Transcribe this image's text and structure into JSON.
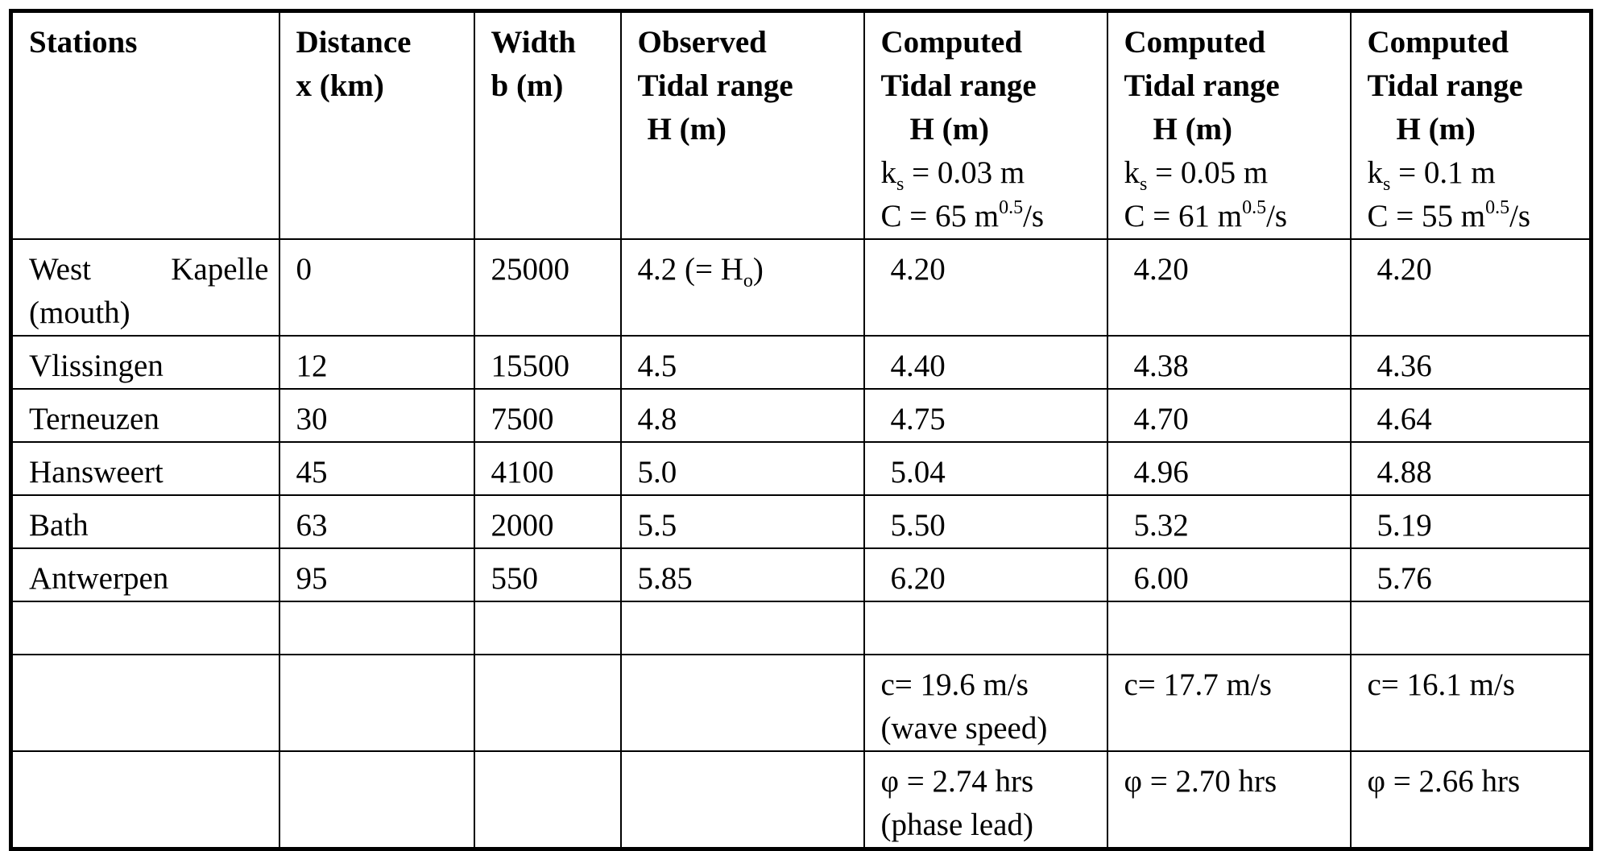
{
  "headers": {
    "stations": "Stations",
    "distance": [
      "Distance",
      "x  (km)"
    ],
    "width": [
      "Width",
      "b  (m)"
    ],
    "observed": [
      "Observed",
      "Tidal range",
      "H (m)"
    ],
    "computed": [
      {
        "l1": "Computed",
        "l2": "Tidal range",
        "l3": "H (m)",
        "ks_pre": "k",
        "ks_sub": "s",
        "ks_post": " = 0.03 m",
        "c_pre": "C = 65 m",
        "c_sup": "0.5",
        "c_post": "/s"
      },
      {
        "l1": "Computed",
        "l2": "Tidal range",
        "l3": "H (m)",
        "ks_pre": "k",
        "ks_sub": "s",
        "ks_post": " = 0.05 m",
        "c_pre": "C = 61 m",
        "c_sup": "0.5",
        "c_post": "/s"
      },
      {
        "l1": "Computed",
        "l2": "Tidal range",
        "l3": "H (m)",
        "ks_pre": "k",
        "ks_sub": "s",
        "ks_post": " = 0.1 m",
        "c_pre": "C = 55 m",
        "c_sup": "0.5",
        "c_post": "/s"
      }
    ]
  },
  "rows": [
    {
      "station": "West Kapelle (mouth)",
      "distance": "0",
      "width": "25000",
      "observed_pre": "4.2 (= H",
      "observed_sub": "o",
      "observed_post": ")",
      "c1": "4.20",
      "c2": "4.20",
      "c3": "4.20"
    },
    {
      "station": "Vlissingen",
      "distance": "12",
      "width": "15500",
      "observed": "4.5",
      "c1": "4.40",
      "c2": "4.38",
      "c3": "4.36"
    },
    {
      "station": "Terneuzen",
      "distance": "30",
      "width": "7500",
      "observed": "4.8",
      "c1": "4.75",
      "c2": "4.70",
      "c3": "4.64"
    },
    {
      "station": "Hansweert",
      "distance": "45",
      "width": "4100",
      "observed": "5.0",
      "c1": "5.04",
      "c2": "4.96",
      "c3": "4.88"
    },
    {
      "station": "Bath",
      "distance": "63",
      "width": "2000",
      "observed": "5.5",
      "c1": "5.50",
      "c2": "5.32",
      "c3": "5.19"
    },
    {
      "station": "Antwerpen",
      "distance": "95",
      "width": "550",
      "observed": "5.85",
      "c1": "6.20",
      "c2": "6.00",
      "c3": "5.76"
    }
  ],
  "wave_speed": {
    "c1": "c= 19.6 m/s",
    "c1_note": "(wave speed)",
    "c2": "c= 17.7 m/s",
    "c3": "c= 16.1  m/s"
  },
  "phase_lead": {
    "c1": "φ = 2.74 hrs",
    "c1_note": "(phase lead)",
    "c2": "φ = 2.70 hrs",
    "c3": "φ = 2.66 hrs"
  }
}
